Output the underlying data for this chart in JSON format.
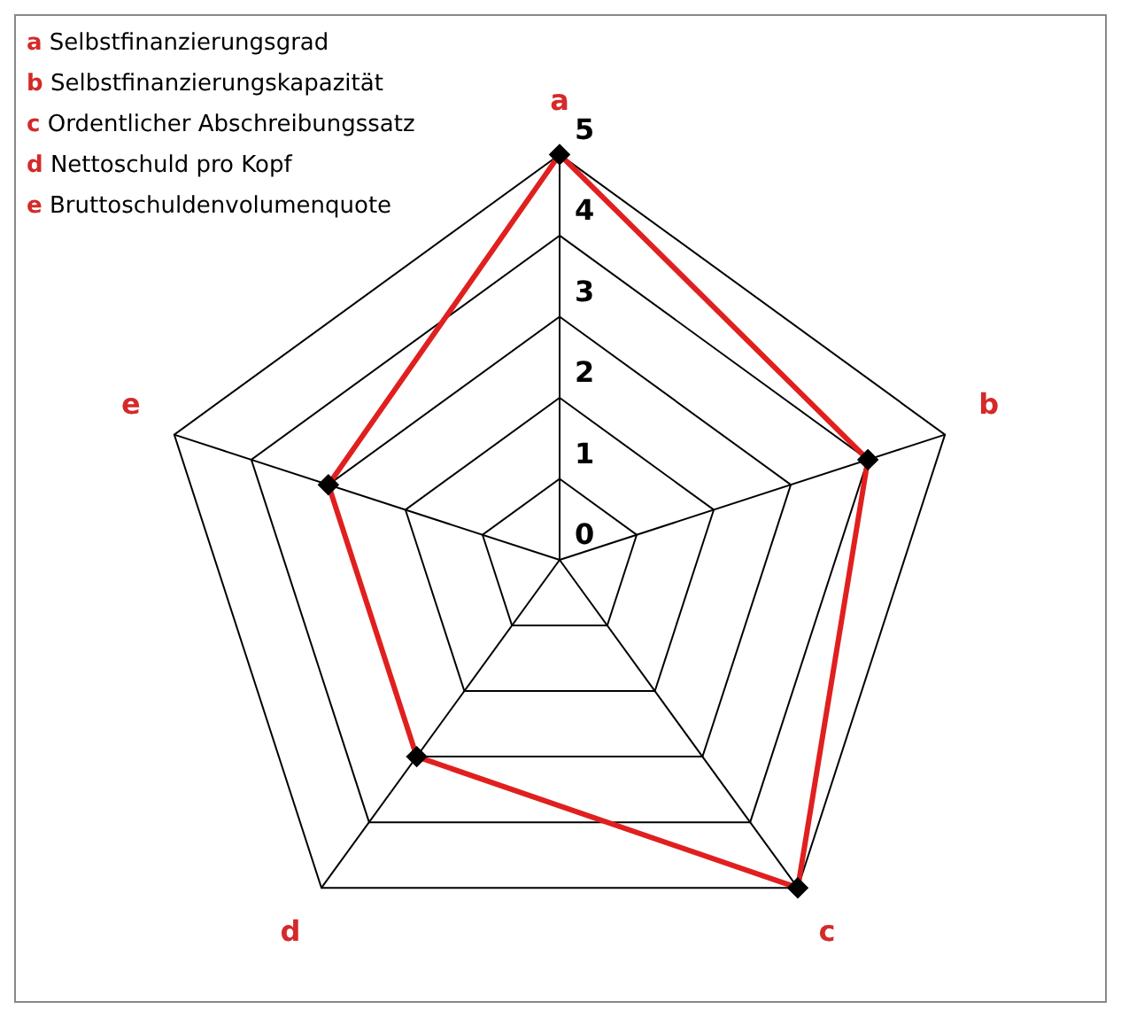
{
  "chart_data": {
    "type": "radar",
    "categories": [
      "a",
      "b",
      "c",
      "d",
      "e"
    ],
    "series": [
      {
        "color": "#e0201f",
        "values": [
          5,
          4,
          5,
          3,
          3
        ]
      }
    ],
    "ylim": [
      0,
      5
    ],
    "yticks": [
      0,
      1,
      2,
      3,
      4,
      5
    ],
    "grid": true,
    "marker": "diamond",
    "line_style": "solid",
    "legend": false,
    "annotations": [
      "Selbstfinanzierungsgrad",
      "Selbstfinanzierungskapazität",
      "Ordentlicher Abschreibungssatz",
      "Nettoschuld pro Kopf",
      "Bruttoschuldenvolumenquote"
    ]
  }
}
